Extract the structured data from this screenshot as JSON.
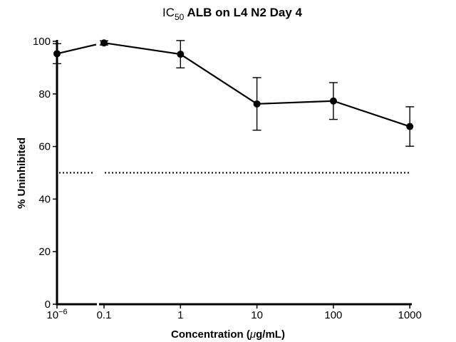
{
  "chart_data": {
    "type": "line",
    "title": {
      "prefix": "IC",
      "subscript": "50",
      "main": " ALB on L4 N2 Day 4"
    },
    "xlabel": {
      "prefix": "Concentration (",
      "mu": "μ",
      "suffix": "g/mL)"
    },
    "ylabel": "% Uninhibited",
    "x_scale": "log",
    "x_axis_break": true,
    "x_ticks": [
      {
        "value": 1e-06,
        "base": "10",
        "exp": "−6"
      },
      {
        "value": 0.1,
        "label": "0.1"
      },
      {
        "value": 1,
        "label": "1"
      },
      {
        "value": 10,
        "label": "10"
      },
      {
        "value": 100,
        "label": "100"
      },
      {
        "value": 1000,
        "label": "1000"
      }
    ],
    "y_ticks": [
      0,
      20,
      40,
      60,
      80,
      100
    ],
    "ylim": [
      0,
      100
    ],
    "grid": false,
    "legend": "none",
    "series": [
      {
        "x": [
          1e-06,
          0.1,
          1,
          10,
          100,
          1000
        ],
        "y": [
          95.3,
          99.4,
          95.1,
          76.2,
          77.3,
          67.6
        ],
        "err": [
          3.8,
          0.8,
          5.2,
          10,
          7,
          7.5
        ],
        "color": "#000000",
        "marker": "circle"
      }
    ],
    "reference_line": {
      "y": 50,
      "style": "dotted"
    }
  }
}
